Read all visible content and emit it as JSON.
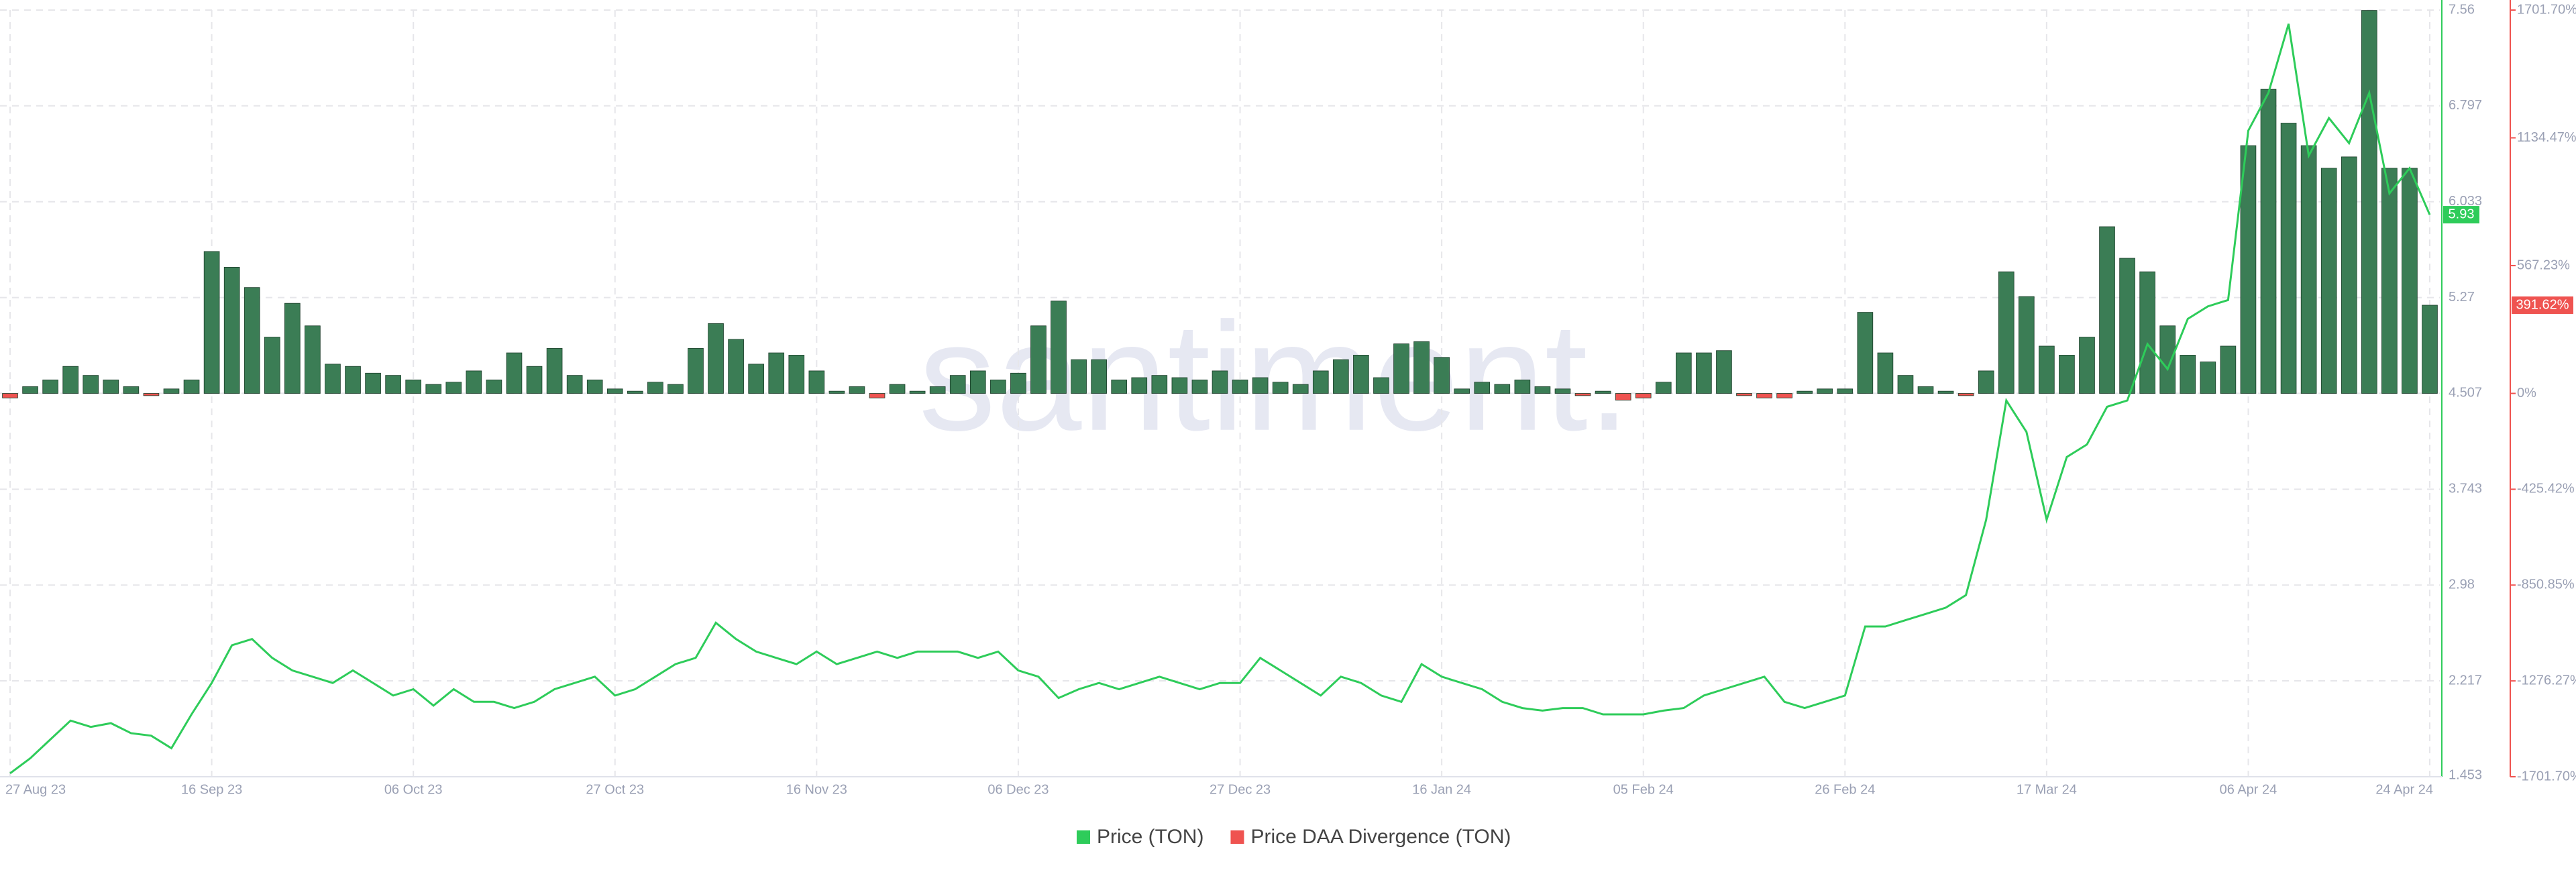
{
  "chart_data": {
    "type": "combo",
    "watermark": "santiment.",
    "grid": true,
    "legend": "bottom",
    "categories": [
      "27 Aug 23",
      null,
      null,
      null,
      null,
      null,
      null,
      null,
      null,
      null,
      "16 Sep 23",
      null,
      null,
      null,
      null,
      null,
      null,
      null,
      null,
      null,
      "06 Oct 23",
      null,
      null,
      null,
      null,
      null,
      null,
      null,
      null,
      null,
      "27 Oct 23",
      null,
      null,
      null,
      null,
      null,
      null,
      null,
      null,
      null,
      "16 Nov 23",
      null,
      null,
      null,
      null,
      null,
      null,
      null,
      null,
      null,
      "06 Dec 23",
      null,
      null,
      null,
      null,
      null,
      null,
      null,
      null,
      null,
      null,
      "27 Dec 23",
      null,
      null,
      null,
      null,
      null,
      null,
      null,
      null,
      null,
      "16 Jan 24",
      null,
      null,
      null,
      null,
      null,
      null,
      null,
      null,
      null,
      "05 Feb 24",
      null,
      null,
      null,
      null,
      null,
      null,
      null,
      null,
      null,
      "26 Feb 24",
      null,
      null,
      null,
      null,
      null,
      null,
      null,
      null,
      null,
      "17 Mar 24",
      null,
      null,
      null,
      null,
      null,
      null,
      null,
      null,
      null,
      "06 Apr 24",
      null,
      null,
      null,
      null,
      null,
      null,
      null,
      null,
      "24 Apr 24"
    ],
    "ylim": [
      1.453,
      7.56
    ],
    "yticks": [
      1.453,
      2.217,
      2.98,
      3.743,
      4.507,
      5.27,
      6.033,
      6.797,
      7.56
    ],
    "y2lim": [
      -1701.7,
      1701.7
    ],
    "y2ticks": [
      {
        "value": -1701.7,
        "label": "-1701.70%"
      },
      {
        "value": -1276.27,
        "label": "-1276.27%"
      },
      {
        "value": -850.85,
        "label": "-850.85%"
      },
      {
        "value": -425.42,
        "label": "-425.42%"
      },
      {
        "value": 0,
        "label": "0%"
      },
      {
        "value": 567.23,
        "label": "567.23%"
      },
      {
        "value": 1134.47,
        "label": "1134.47%"
      },
      {
        "value": 1701.7,
        "label": "1701.70%"
      }
    ],
    "series": [
      {
        "name": "Price (TON)",
        "type": "line",
        "axis": "y",
        "color": "#2ecc5a",
        "last_value_label": "5.93",
        "values": [
          1.48,
          1.6,
          1.75,
          1.9,
          1.85,
          1.88,
          1.8,
          1.78,
          1.68,
          1.95,
          2.2,
          2.5,
          2.55,
          2.4,
          2.3,
          2.25,
          2.2,
          2.3,
          2.2,
          2.1,
          2.15,
          2.02,
          2.15,
          2.05,
          2.05,
          2.0,
          2.05,
          2.15,
          2.2,
          2.25,
          2.1,
          2.15,
          2.25,
          2.35,
          2.4,
          2.68,
          2.55,
          2.45,
          2.4,
          2.35,
          2.45,
          2.35,
          2.4,
          2.45,
          2.4,
          2.45,
          2.45,
          2.45,
          2.4,
          2.45,
          2.3,
          2.25,
          2.08,
          2.15,
          2.2,
          2.15,
          2.2,
          2.25,
          2.2,
          2.15,
          2.2,
          2.2,
          2.4,
          2.3,
          2.2,
          2.1,
          2.25,
          2.2,
          2.1,
          2.05,
          2.35,
          2.25,
          2.2,
          2.15,
          2.05,
          2.0,
          1.98,
          2.0,
          2.0,
          1.95,
          1.95,
          1.95,
          1.98,
          2.0,
          2.1,
          2.15,
          2.2,
          2.25,
          2.05,
          2.0,
          2.05,
          2.1,
          2.65,
          2.65,
          2.7,
          2.75,
          2.8,
          2.9,
          3.5,
          4.45,
          4.2,
          3.5,
          4.0,
          4.1,
          4.4,
          4.45,
          4.9,
          4.7,
          5.1,
          5.2,
          5.25,
          6.6,
          6.9,
          7.45,
          6.4,
          6.7,
          6.5,
          6.9,
          6.1,
          6.3,
          5.93
        ]
      },
      {
        "name": "Price DAA Divergence (TON)",
        "type": "bar",
        "axis": "y2",
        "color": "#ef5350",
        "positive_color": "#3b7d55",
        "last_value_label": "391.62%",
        "values": [
          -20,
          30,
          60,
          120,
          80,
          60,
          30,
          -10,
          20,
          60,
          630,
          560,
          470,
          250,
          400,
          300,
          130,
          120,
          90,
          80,
          60,
          40,
          50,
          100,
          60,
          180,
          120,
          200,
          80,
          60,
          20,
          10,
          50,
          40,
          200,
          310,
          240,
          130,
          180,
          170,
          100,
          10,
          30,
          -20,
          40,
          10,
          30,
          80,
          100,
          60,
          90,
          300,
          410,
          150,
          150,
          60,
          70,
          80,
          70,
          60,
          100,
          60,
          70,
          50,
          40,
          100,
          150,
          170,
          70,
          220,
          230,
          160,
          20,
          50,
          40,
          60,
          30,
          20,
          -10,
          10,
          -30,
          -20,
          50,
          180,
          180,
          190,
          -10,
          -20,
          -20,
          10,
          20,
          20,
          360,
          180,
          80,
          30,
          10,
          -10,
          100,
          540,
          430,
          210,
          170,
          250,
          740,
          600,
          540,
          300,
          170,
          140,
          210,
          1100,
          1350,
          1200,
          1100,
          1000,
          1050,
          1700,
          1000,
          1000,
          391.62
        ]
      }
    ]
  }
}
